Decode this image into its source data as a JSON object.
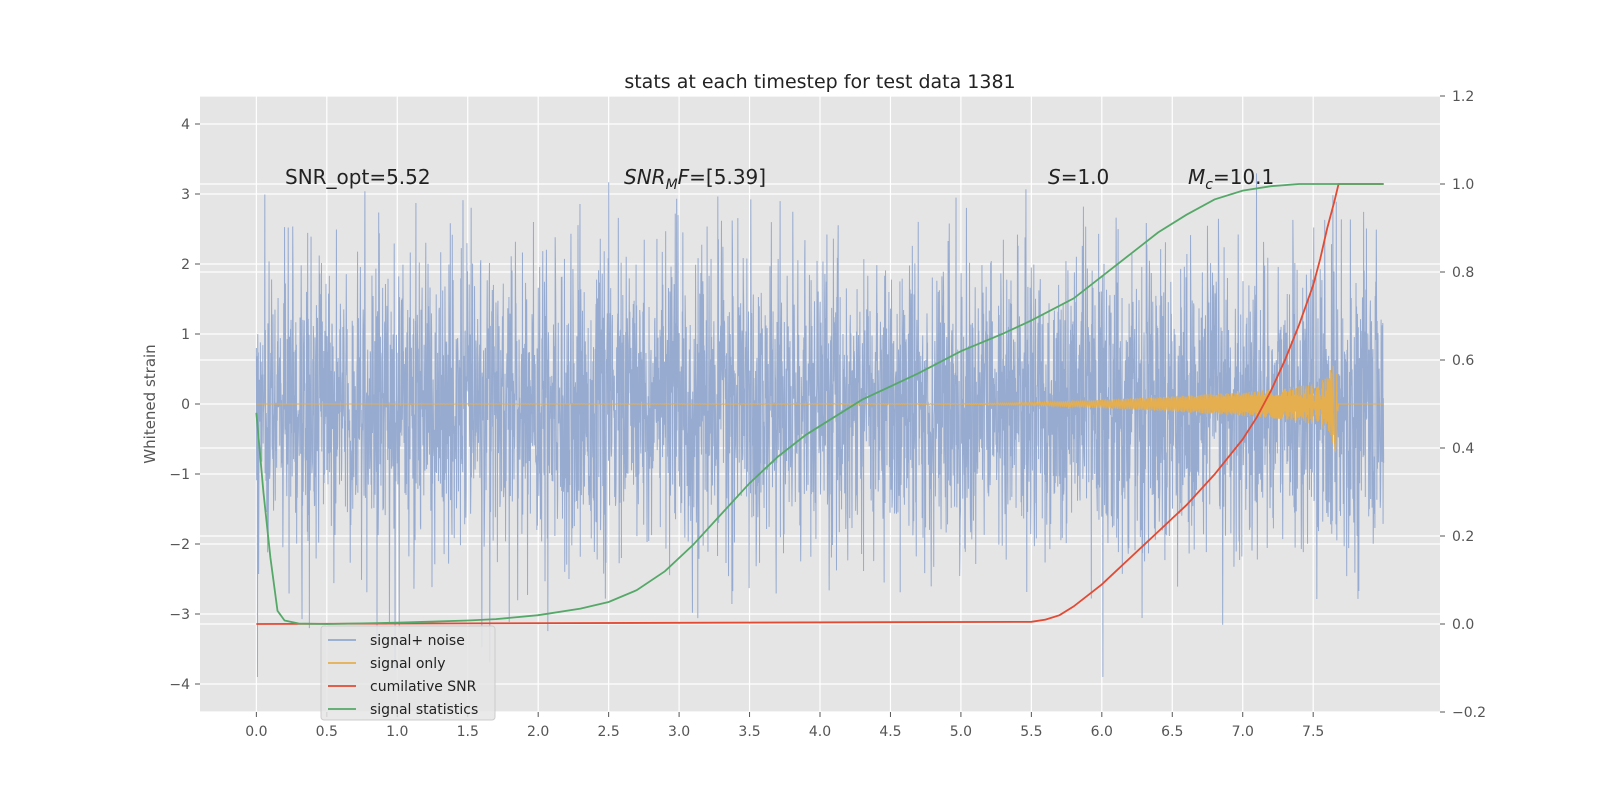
{
  "chart_data": {
    "type": "line",
    "title": "stats at each timestep for test data 1381",
    "xlabel": "",
    "ylabel": "Whitened strain",
    "y2label": "",
    "grid": true,
    "legend_position": "lower-left",
    "xlim": [
      -0.4,
      8.4
    ],
    "ylim": [
      -4.4,
      4.4
    ],
    "y2lim": [
      -0.2,
      1.2
    ],
    "x_ticks": [
      "0.0",
      "0.5",
      "1.0",
      "1.5",
      "2.0",
      "2.5",
      "3.0",
      "3.5",
      "4.0",
      "4.5",
      "5.0",
      "5.5",
      "6.0",
      "6.5",
      "7.0",
      "7.5"
    ],
    "x_tick_values": [
      0.0,
      0.5,
      1.0,
      1.5,
      2.0,
      2.5,
      3.0,
      3.5,
      4.0,
      4.5,
      5.0,
      5.5,
      6.0,
      6.5,
      7.0,
      7.5
    ],
    "y_ticks": [
      "4",
      "3",
      "2",
      "1",
      "0",
      "−1",
      "−2",
      "−3",
      "−4"
    ],
    "y_tick_values": [
      4,
      3,
      2,
      1,
      0,
      -1,
      -2,
      -3,
      -4
    ],
    "y2_ticks": [
      "1.2",
      "1.0",
      "0.8",
      "0.6",
      "0.4",
      "0.2",
      "0.0",
      "−0.2"
    ],
    "y2_tick_values": [
      1.2,
      1.0,
      0.8,
      0.6,
      0.4,
      0.2,
      0.0,
      -0.2
    ],
    "annotations": {
      "snr_opt": "SNR_opt=5.52",
      "snr_mf_main": "SNR",
      "snr_mf_sub": "M",
      "snr_mf_it": "F",
      "snr_mf_value": "=[5.39]",
      "s_label": "S",
      "s_value": "=1.0",
      "mc_main": "M",
      "mc_sub": "c",
      "mc_value": "=10.1"
    },
    "series": [
      {
        "name": "signal+ noise",
        "color": "#92a8cf",
        "axis": "left",
        "note": "white-noise-like strain, ~N(0,1) band roughly ±2.5 with peaks near ±3.8",
        "x_range": [
          0.0,
          8.0
        ],
        "envelope": [
          -2.5,
          2.5
        ]
      },
      {
        "name": "signal only",
        "color": "#e5ae4f",
        "axis": "left",
        "x": [
          0.0,
          5.0,
          5.5,
          6.0,
          6.5,
          7.0,
          7.3,
          7.5,
          7.6,
          7.66,
          7.68
        ],
        "amplitude": [
          0.0,
          0.005,
          0.02,
          0.06,
          0.11,
          0.17,
          0.22,
          0.29,
          0.38,
          0.7,
          0.0
        ]
      },
      {
        "name": "cumilative SNR",
        "color": "#e24a33",
        "axis": "right",
        "x": [
          0.0,
          5.5,
          5.6,
          5.7,
          5.8,
          5.9,
          6.0,
          6.1,
          6.2,
          6.3,
          6.4,
          6.5,
          6.6,
          6.7,
          6.8,
          6.9,
          7.0,
          7.1,
          7.2,
          7.3,
          7.4,
          7.5,
          7.55,
          7.6,
          7.65,
          7.68,
          8.0
        ],
        "values": [
          0.0,
          0.005,
          0.01,
          0.02,
          0.04,
          0.065,
          0.09,
          0.12,
          0.15,
          0.18,
          0.21,
          0.24,
          0.27,
          0.305,
          0.34,
          0.38,
          0.42,
          0.47,
          0.53,
          0.6,
          0.68,
          0.77,
          0.83,
          0.9,
          0.96,
          1.0,
          1.0
        ]
      },
      {
        "name": "signal statistics",
        "color": "#55a868",
        "axis": "right",
        "x": [
          0.0,
          0.05,
          0.1,
          0.15,
          0.2,
          0.3,
          0.5,
          1.0,
          1.5,
          1.7,
          2.0,
          2.3,
          2.5,
          2.7,
          2.9,
          3.1,
          3.3,
          3.5,
          3.7,
          3.9,
          4.1,
          4.3,
          4.5,
          4.7,
          5.0,
          5.3,
          5.5,
          5.8,
          6.0,
          6.2,
          6.4,
          6.6,
          6.8,
          7.0,
          7.2,
          7.4,
          7.6,
          7.8,
          8.0
        ],
        "values": [
          0.48,
          0.3,
          0.15,
          0.03,
          0.008,
          0.001,
          0.0,
          0.003,
          0.008,
          0.011,
          0.02,
          0.035,
          0.05,
          0.077,
          0.12,
          0.18,
          0.25,
          0.32,
          0.38,
          0.43,
          0.47,
          0.51,
          0.54,
          0.57,
          0.62,
          0.66,
          0.69,
          0.74,
          0.79,
          0.84,
          0.89,
          0.93,
          0.965,
          0.985,
          0.995,
          1.0,
          1.0,
          1.0,
          1.0
        ]
      }
    ]
  }
}
